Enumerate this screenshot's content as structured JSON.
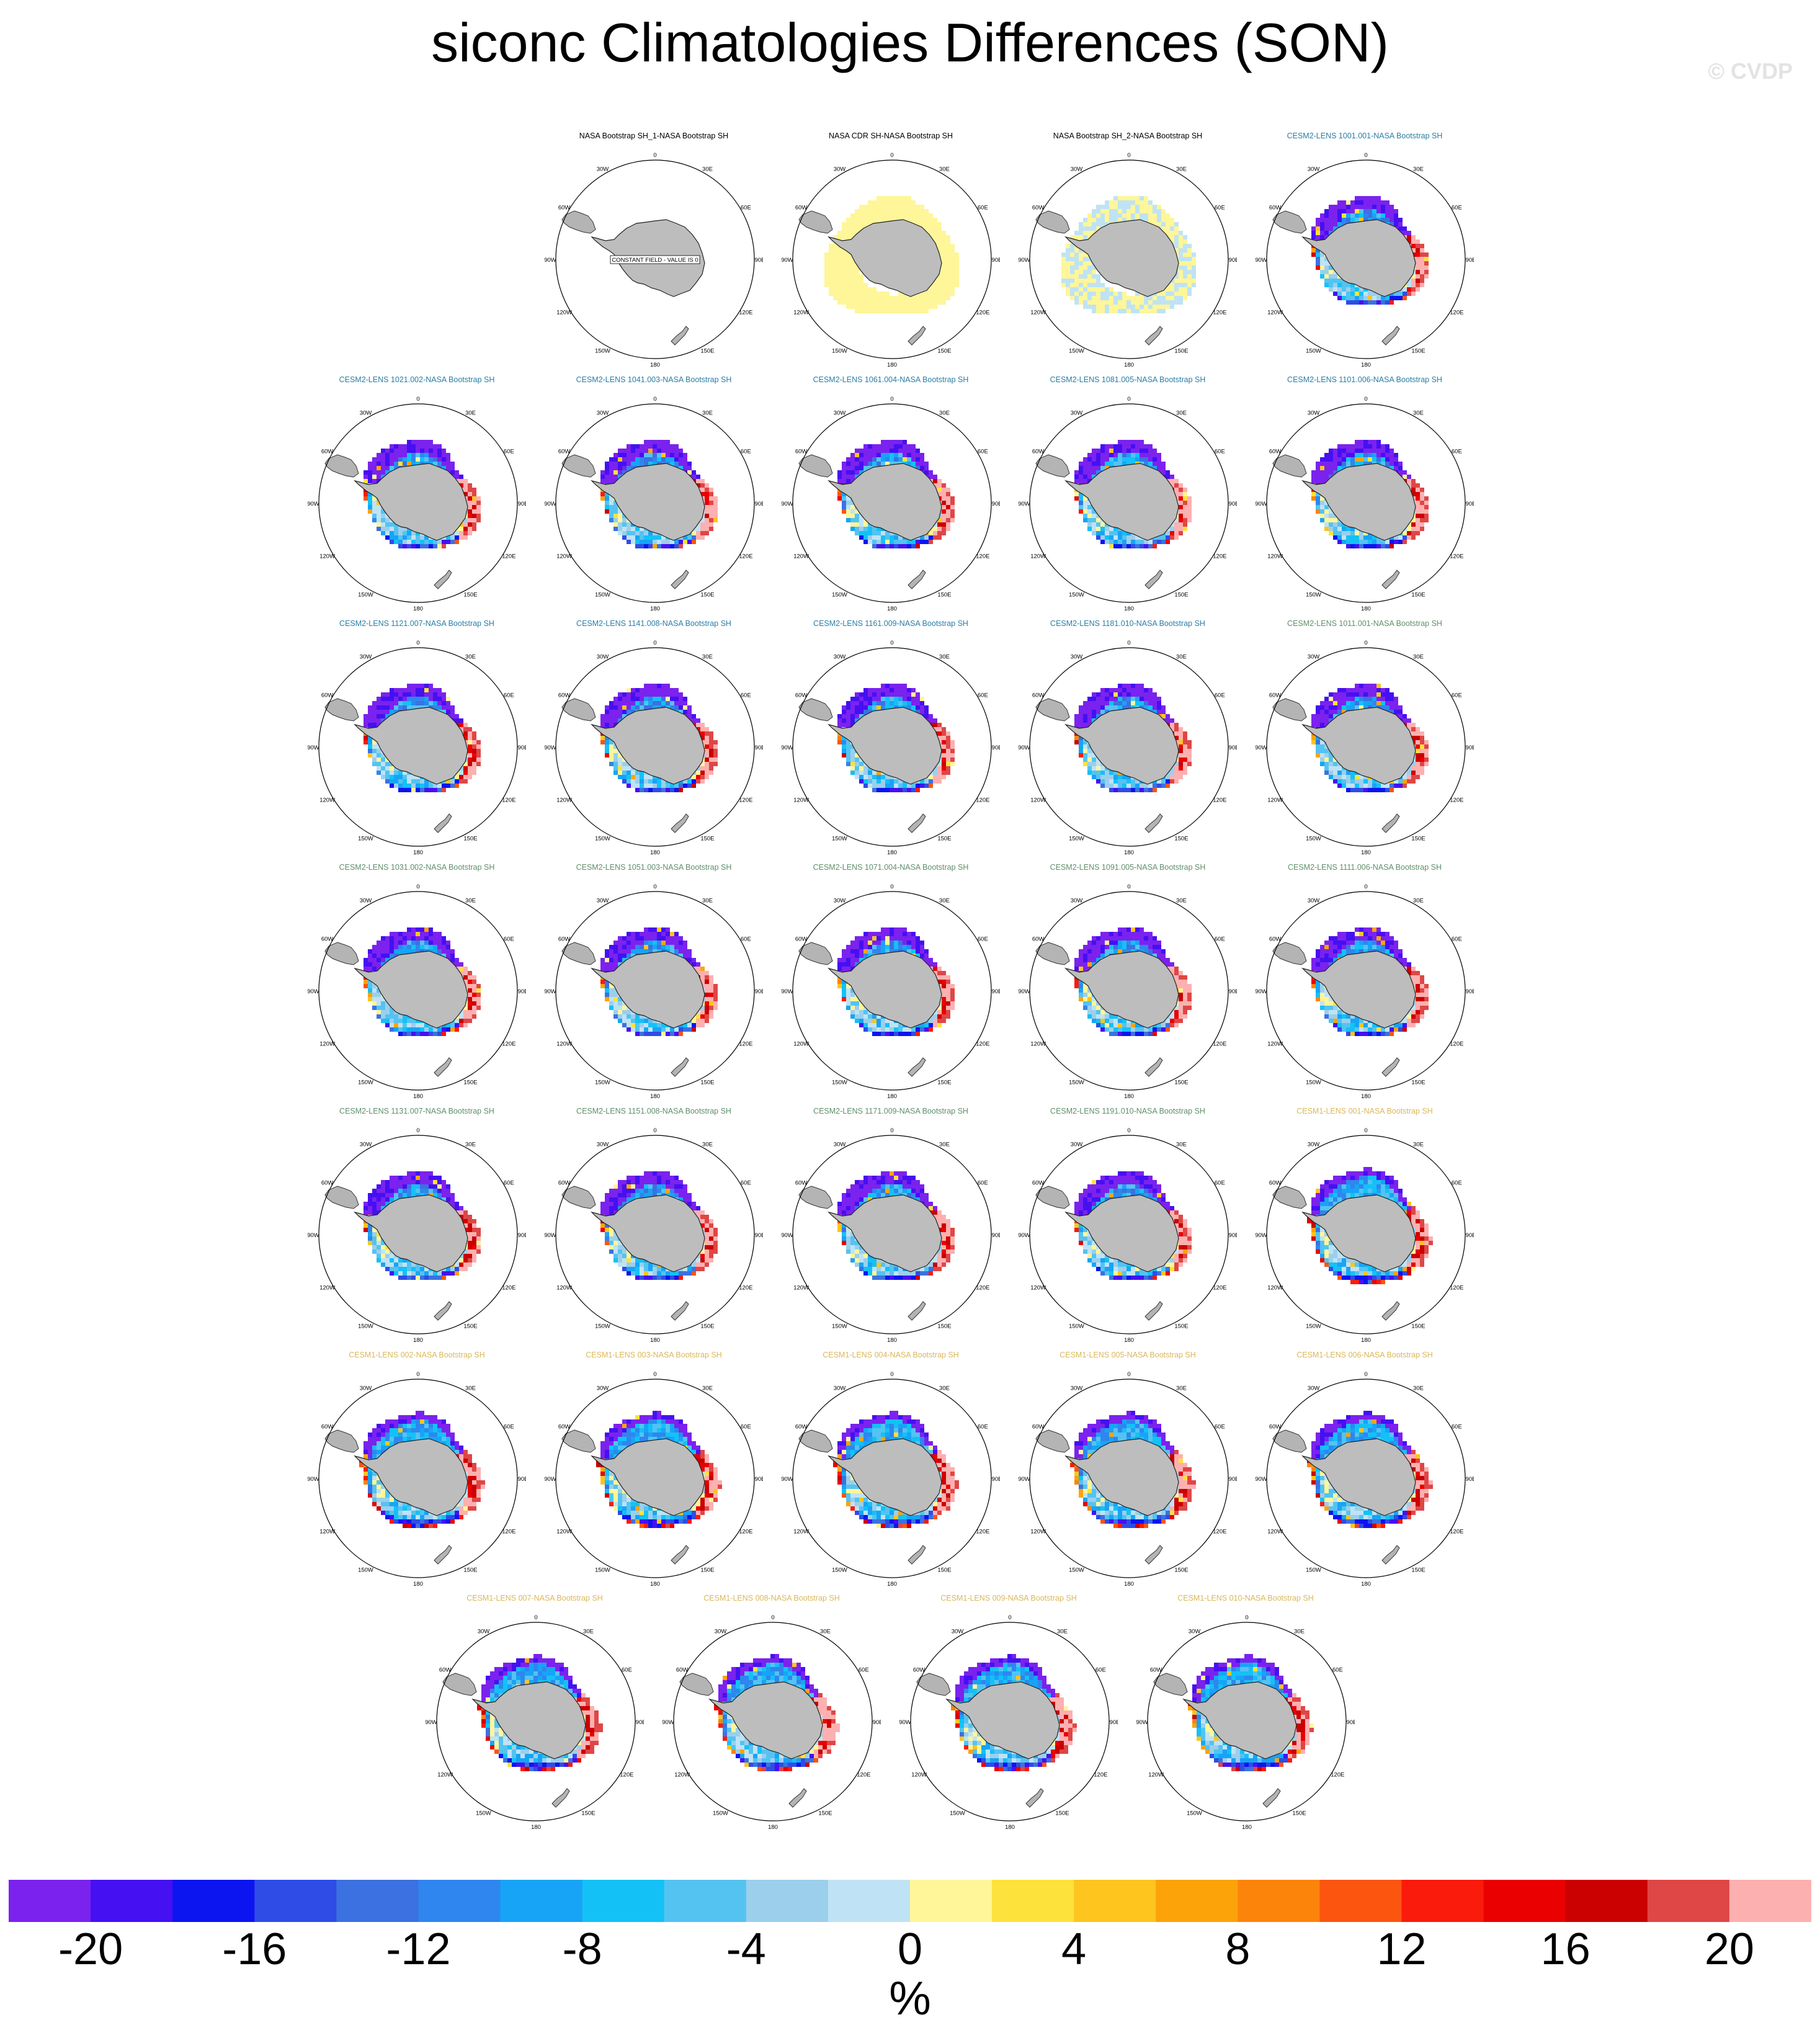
{
  "title": "siconc Climatologies Differences (SON)",
  "watermark": "© CVDP",
  "colors": {
    "obs": "#000000",
    "cesm2_a": "#2a7ea6",
    "cesm2_b": "#5f8f6a",
    "cesm1": "#d9b85a"
  },
  "panels": [
    {
      "label": "NASA Bootstrap SH_1-NASA Bootstrap SH",
      "group": "obs",
      "kind": "const",
      "note": "CONSTANT FIELD - VALUE IS 0"
    },
    {
      "label": "NASA CDR SH-NASA Bootstrap SH",
      "group": "obs",
      "kind": "cdr"
    },
    {
      "label": "NASA Bootstrap SH_2-NASA Bootstrap SH",
      "group": "obs",
      "kind": "bs2"
    },
    {
      "label": "CESM2-LENS 1001.001-NASA Bootstrap SH",
      "group": "cesm2_a",
      "kind": "model"
    },
    {
      "label": "CESM2-LENS 1021.002-NASA Bootstrap SH",
      "group": "cesm2_a",
      "kind": "model"
    },
    {
      "label": "CESM2-LENS 1041.003-NASA Bootstrap SH",
      "group": "cesm2_a",
      "kind": "model"
    },
    {
      "label": "CESM2-LENS 1061.004-NASA Bootstrap SH",
      "group": "cesm2_a",
      "kind": "model"
    },
    {
      "label": "CESM2-LENS 1081.005-NASA Bootstrap SH",
      "group": "cesm2_a",
      "kind": "model"
    },
    {
      "label": "CESM2-LENS 1101.006-NASA Bootstrap SH",
      "group": "cesm2_a",
      "kind": "model"
    },
    {
      "label": "CESM2-LENS 1121.007-NASA Bootstrap SH",
      "group": "cesm2_a",
      "kind": "model"
    },
    {
      "label": "CESM2-LENS 1141.008-NASA Bootstrap SH",
      "group": "cesm2_a",
      "kind": "model"
    },
    {
      "label": "CESM2-LENS 1161.009-NASA Bootstrap SH",
      "group": "cesm2_a",
      "kind": "model"
    },
    {
      "label": "CESM2-LENS 1181.010-NASA Bootstrap SH",
      "group": "cesm2_a",
      "kind": "model"
    },
    {
      "label": "CESM2-LENS 1011.001-NASA Bootstrap SH",
      "group": "cesm2_b",
      "kind": "model"
    },
    {
      "label": "CESM2-LENS 1031.002-NASA Bootstrap SH",
      "group": "cesm2_b",
      "kind": "model"
    },
    {
      "label": "CESM2-LENS 1051.003-NASA Bootstrap SH",
      "group": "cesm2_b",
      "kind": "model"
    },
    {
      "label": "CESM2-LENS 1071.004-NASA Bootstrap SH",
      "group": "cesm2_b",
      "kind": "model"
    },
    {
      "label": "CESM2-LENS 1091.005-NASA Bootstrap SH",
      "group": "cesm2_b",
      "kind": "model"
    },
    {
      "label": "CESM2-LENS 1111.006-NASA Bootstrap SH",
      "group": "cesm2_b",
      "kind": "model"
    },
    {
      "label": "CESM2-LENS 1131.007-NASA Bootstrap SH",
      "group": "cesm2_b",
      "kind": "model"
    },
    {
      "label": "CESM2-LENS 1151.008-NASA Bootstrap SH",
      "group": "cesm2_b",
      "kind": "model"
    },
    {
      "label": "CESM2-LENS 1171.009-NASA Bootstrap SH",
      "group": "cesm2_b",
      "kind": "model"
    },
    {
      "label": "CESM2-LENS 1191.010-NASA Bootstrap SH",
      "group": "cesm2_b",
      "kind": "model"
    },
    {
      "label": "CESM1-LENS 001-NASA Bootstrap SH",
      "group": "cesm1",
      "kind": "model1"
    },
    {
      "label": "CESM1-LENS 002-NASA Bootstrap SH",
      "group": "cesm1",
      "kind": "model1"
    },
    {
      "label": "CESM1-LENS 003-NASA Bootstrap SH",
      "group": "cesm1",
      "kind": "model1"
    },
    {
      "label": "CESM1-LENS 004-NASA Bootstrap SH",
      "group": "cesm1",
      "kind": "model1"
    },
    {
      "label": "CESM1-LENS 005-NASA Bootstrap SH",
      "group": "cesm1",
      "kind": "model1"
    },
    {
      "label": "CESM1-LENS 006-NASA Bootstrap SH",
      "group": "cesm1",
      "kind": "model1"
    },
    {
      "label": "CESM1-LENS 007-NASA Bootstrap SH",
      "group": "cesm1",
      "kind": "model1"
    },
    {
      "label": "CESM1-LENS 008-NASA Bootstrap SH",
      "group": "cesm1",
      "kind": "model1"
    },
    {
      "label": "CESM1-LENS 009-NASA Bootstrap SH",
      "group": "cesm1",
      "kind": "model1"
    },
    {
      "label": "CESM1-LENS 010-NASA Bootstrap SH",
      "group": "cesm1",
      "kind": "model1"
    }
  ],
  "map_labels": [
    "0",
    "30E",
    "60E",
    "90E",
    "120E",
    "150E",
    "180",
    "150W",
    "120W",
    "90W",
    "60W",
    "30W"
  ],
  "chart_data": {
    "type": "heatmap",
    "title": "siconc Climatologies Differences (SON)",
    "projection": "south polar stereographic",
    "colorbar": {
      "unit_label": "%",
      "levels": [
        -22,
        -20,
        -18,
        -16,
        -14,
        -12,
        -10,
        -8,
        -6,
        -4,
        -2,
        0,
        2,
        4,
        6,
        8,
        10,
        12,
        14,
        16,
        18,
        20,
        22
      ],
      "tick_labels": [
        "-20",
        "-16",
        "-12",
        "-8",
        "-4",
        "0",
        "4",
        "8",
        "12",
        "16",
        "20"
      ],
      "tick_values": [
        -20,
        -16,
        -12,
        -8,
        -4,
        0,
        4,
        8,
        12,
        16,
        20
      ],
      "colors": [
        "#7b22ee",
        "#4510f2",
        "#0c14ef",
        "#2f4ce6",
        "#3b71e0",
        "#2f86ee",
        "#17a4f6",
        "#14c1f7",
        "#54c3f1",
        "#9ccfec",
        "#bfe3f4",
        "#fef699",
        "#fde23c",
        "#fdc51e",
        "#fca30a",
        "#fd840a",
        "#fb5510",
        "#fa1b0c",
        "#ea0000",
        "#cb0000",
        "#df4646",
        "#fdb0b0"
      ],
      "position": "bottom"
    }
  }
}
